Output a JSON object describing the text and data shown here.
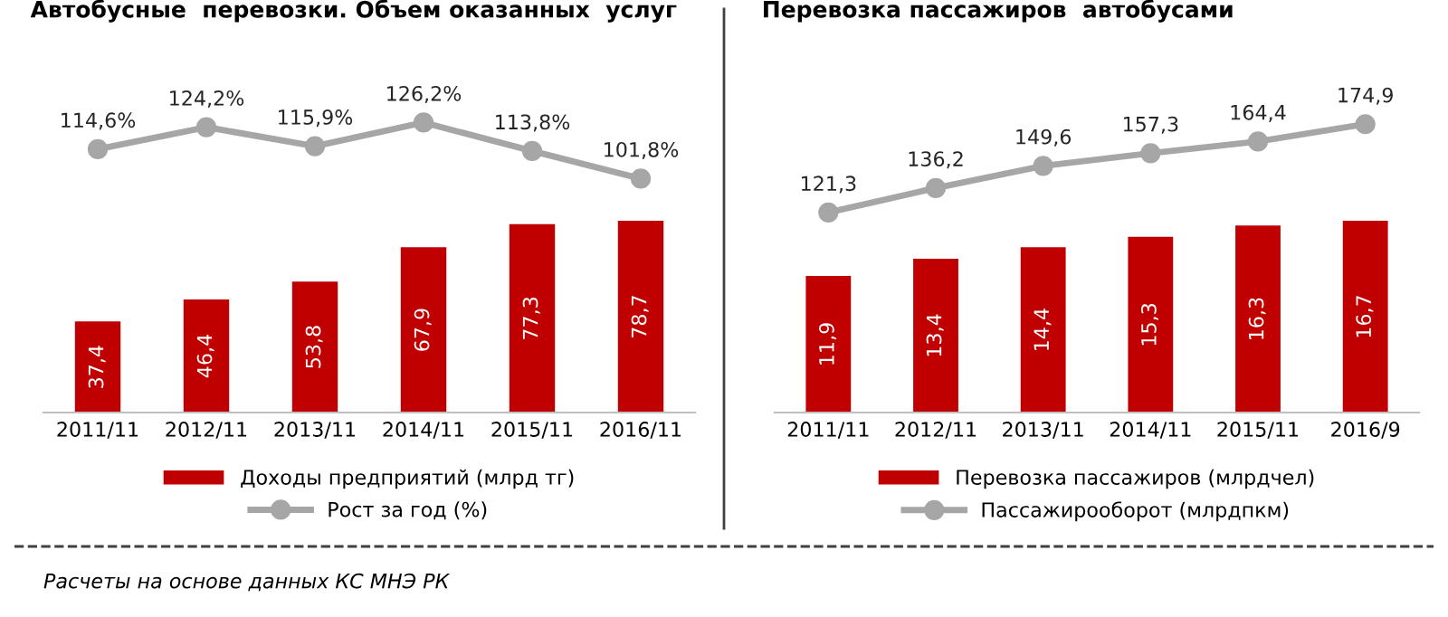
{
  "chart_data": [
    {
      "type": "bar",
      "categories": [
        "2011/11",
        "2012/11",
        "2013/11",
        "2014/11",
        "2015/11",
        "2016/11"
      ],
      "series": [
        {
          "name": "Доходы предприятий (млрд тг)",
          "color": "#c00000",
          "values": [
            37.4,
            46.4,
            53.8,
            67.9,
            77.3,
            78.7
          ],
          "value_labels": [
            "37,4",
            "46,4",
            "53,8",
            "67,9",
            "77,3",
            "78,7"
          ]
        }
      ],
      "tick_labels": "x",
      "grid": false,
      "legend": "bottom",
      "annotations": [
        "Расчеты на основе данных КС МНЭ РК"
      ]
    },
    {
      "type": "line",
      "title": "Автобусные  перевозки. Объем оказанных  услуг",
      "categories": [
        "2011/11",
        "2012/11",
        "2013/11",
        "2014/11",
        "2015/11",
        "2016/11"
      ],
      "marker": "circle",
      "series": [
        {
          "name": "Рост за год (%)",
          "color": "#a6a6a6",
          "values": [
            114.6,
            124.2,
            115.9,
            126.2,
            113.8,
            101.8
          ],
          "value_labels": [
            "114,6%",
            "124,2%",
            "115,9%",
            "126,2%",
            "113,8%",
            "101,8%"
          ]
        }
      ],
      "tick_labels": false,
      "grid": false,
      "legend": "bottom"
    },
    {
      "type": "bar",
      "categories": [
        "2011/11",
        "2012/11",
        "2013/11",
        "2014/11",
        "2015/11",
        "2016/9"
      ],
      "series": [
        {
          "name": "Перевозка пассажиров (млрдчел)",
          "color": "#c00000",
          "values": [
            11.9,
            13.4,
            14.4,
            15.3,
            16.3,
            16.7
          ],
          "value_labels": [
            "11,9",
            "13,4",
            "14,4",
            "15,3",
            "16,3",
            "16,7"
          ]
        }
      ],
      "tick_labels": "x",
      "grid": false,
      "legend": "bottom"
    },
    {
      "type": "line",
      "title": "Перевозка пассажиров  автобусами",
      "categories": [
        "2011/11",
        "2012/11",
        "2013/11",
        "2014/11",
        "2015/11",
        "2016/9"
      ],
      "marker": "circle",
      "series": [
        {
          "name": "Пассажирооборот (млрдпкм)",
          "color": "#a6a6a6",
          "values": [
            121.3,
            136.2,
            149.6,
            157.3,
            164.4,
            174.9
          ],
          "value_labels": [
            "121,3",
            "136,2",
            "149,6",
            "157,3",
            "164,4",
            "174,9"
          ]
        }
      ],
      "tick_labels": false,
      "grid": false,
      "legend": "bottom"
    }
  ]
}
